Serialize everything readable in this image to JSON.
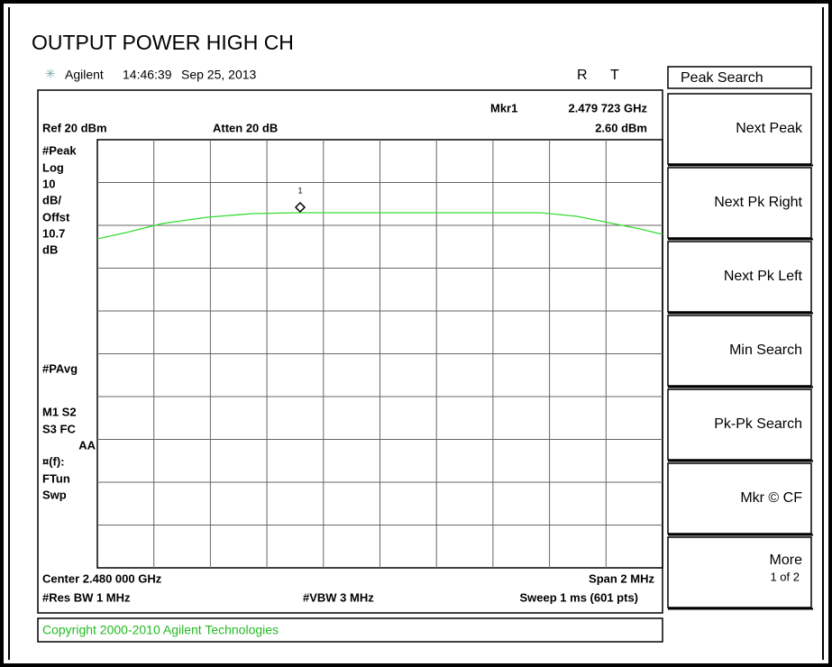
{
  "title": "OUTPUT POWER HIGH CH",
  "header": {
    "brand": "Agilent",
    "time": "14:46:39",
    "date": "Sep 25, 2013",
    "status": [
      "R",
      "T"
    ]
  },
  "marker": {
    "label": "Mkr1",
    "frequency": "2.479 723 GHz",
    "level": "2.60 dBm",
    "number": "1"
  },
  "ref": "Ref 20 dBm",
  "atten": "Atten 20 dB",
  "left_labels": [
    "#Peak",
    "Log",
    "10",
    "dB/",
    "Offst",
    "10.7",
    "dB",
    "#PAvg",
    "M1  S2",
    "S3  FC",
    "AA",
    "¤(f):",
    "FTun",
    "Swp"
  ],
  "footer": {
    "center": "Center 2.480 000 GHz",
    "span": "Span 2 MHz",
    "res_bw": "#Res BW 1 MHz",
    "vbw": "#VBW 3 MHz",
    "sweep": "Sweep 1 ms (601 pts)"
  },
  "copyright": "Copyright 2000-2010 Agilent Technologies",
  "softkeys": {
    "menu": "Peak Search",
    "keys": [
      {
        "label": "Next Peak"
      },
      {
        "label": "Next Pk Right"
      },
      {
        "label": "Next Pk Left"
      },
      {
        "label": "Min Search"
      },
      {
        "label": "Pk-Pk Search"
      },
      {
        "label": "Mkr © CF"
      },
      {
        "label": "More",
        "sub": "1 of 2"
      }
    ]
  }
}
